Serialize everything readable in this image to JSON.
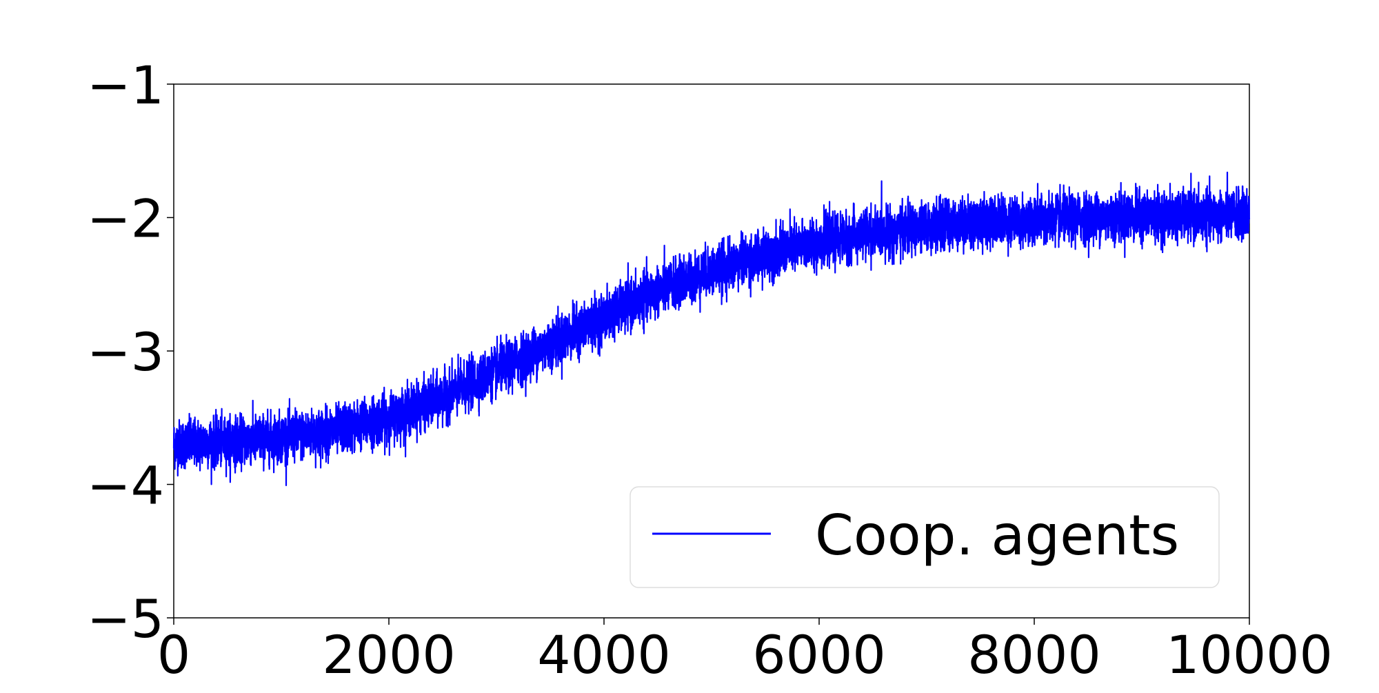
{
  "chart_data": {
    "type": "line",
    "title": "",
    "xlabel": "",
    "ylabel": "",
    "xlim": [
      0,
      10000
    ],
    "ylim": [
      -5,
      -1
    ],
    "x_ticks": [
      0,
      2000,
      4000,
      6000,
      8000,
      10000
    ],
    "x_tick_labels": [
      "0",
      "2000",
      "4000",
      "6000",
      "8000",
      "10000"
    ],
    "y_ticks": [
      -1,
      -2,
      -3,
      -4,
      -5
    ],
    "y_tick_labels": [
      "−1",
      "−2",
      "−3",
      "−4",
      "−5"
    ],
    "grid": false,
    "legend": {
      "position": "lower-right",
      "entries": [
        "Coop. agents"
      ]
    },
    "series": [
      {
        "name": "Coop. agents",
        "color": "#0000ff",
        "n_points": 10000,
        "trend_x": [
          0,
          500,
          1000,
          1500,
          2000,
          2500,
          3000,
          3500,
          4000,
          4500,
          5000,
          5500,
          6000,
          6500,
          7000,
          7500,
          8000,
          8500,
          9000,
          9500,
          10000
        ],
        "trend_y": [
          -3.7,
          -3.68,
          -3.65,
          -3.6,
          -3.5,
          -3.35,
          -3.15,
          -2.95,
          -2.75,
          -2.55,
          -2.4,
          -2.28,
          -2.18,
          -2.12,
          -2.07,
          -2.03,
          -2.02,
          -2.0,
          -1.99,
          -1.99,
          -1.98
        ],
        "noise_amplitude": 0.15,
        "min_observed": -4.25,
        "max_observed": -1.63
      }
    ]
  }
}
